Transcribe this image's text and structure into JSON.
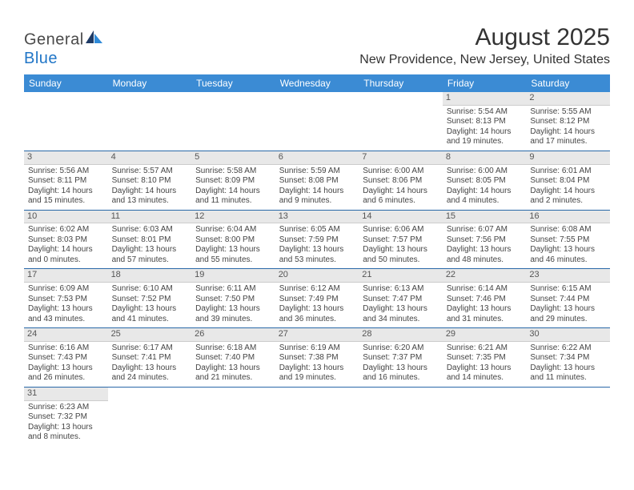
{
  "logo": {
    "text1": "General",
    "text2": "Blue"
  },
  "title": "August 2025",
  "location": "New Providence, New Jersey, United States",
  "colors": {
    "header_bg": "#3b8bd4",
    "header_text": "#ffffff",
    "daynum_bg": "#e8e8e8",
    "row_border": "#2968a8",
    "logo_blue": "#2176c7"
  },
  "weekdays": [
    "Sunday",
    "Monday",
    "Tuesday",
    "Wednesday",
    "Thursday",
    "Friday",
    "Saturday"
  ],
  "weeks": [
    [
      null,
      null,
      null,
      null,
      null,
      {
        "d": "1",
        "sr": "Sunrise: 5:54 AM",
        "ss": "Sunset: 8:13 PM",
        "dl1": "Daylight: 14 hours",
        "dl2": "and 19 minutes."
      },
      {
        "d": "2",
        "sr": "Sunrise: 5:55 AM",
        "ss": "Sunset: 8:12 PM",
        "dl1": "Daylight: 14 hours",
        "dl2": "and 17 minutes."
      }
    ],
    [
      {
        "d": "3",
        "sr": "Sunrise: 5:56 AM",
        "ss": "Sunset: 8:11 PM",
        "dl1": "Daylight: 14 hours",
        "dl2": "and 15 minutes."
      },
      {
        "d": "4",
        "sr": "Sunrise: 5:57 AM",
        "ss": "Sunset: 8:10 PM",
        "dl1": "Daylight: 14 hours",
        "dl2": "and 13 minutes."
      },
      {
        "d": "5",
        "sr": "Sunrise: 5:58 AM",
        "ss": "Sunset: 8:09 PM",
        "dl1": "Daylight: 14 hours",
        "dl2": "and 11 minutes."
      },
      {
        "d": "6",
        "sr": "Sunrise: 5:59 AM",
        "ss": "Sunset: 8:08 PM",
        "dl1": "Daylight: 14 hours",
        "dl2": "and 9 minutes."
      },
      {
        "d": "7",
        "sr": "Sunrise: 6:00 AM",
        "ss": "Sunset: 8:06 PM",
        "dl1": "Daylight: 14 hours",
        "dl2": "and 6 minutes."
      },
      {
        "d": "8",
        "sr": "Sunrise: 6:00 AM",
        "ss": "Sunset: 8:05 PM",
        "dl1": "Daylight: 14 hours",
        "dl2": "and 4 minutes."
      },
      {
        "d": "9",
        "sr": "Sunrise: 6:01 AM",
        "ss": "Sunset: 8:04 PM",
        "dl1": "Daylight: 14 hours",
        "dl2": "and 2 minutes."
      }
    ],
    [
      {
        "d": "10",
        "sr": "Sunrise: 6:02 AM",
        "ss": "Sunset: 8:03 PM",
        "dl1": "Daylight: 14 hours",
        "dl2": "and 0 minutes."
      },
      {
        "d": "11",
        "sr": "Sunrise: 6:03 AM",
        "ss": "Sunset: 8:01 PM",
        "dl1": "Daylight: 13 hours",
        "dl2": "and 57 minutes."
      },
      {
        "d": "12",
        "sr": "Sunrise: 6:04 AM",
        "ss": "Sunset: 8:00 PM",
        "dl1": "Daylight: 13 hours",
        "dl2": "and 55 minutes."
      },
      {
        "d": "13",
        "sr": "Sunrise: 6:05 AM",
        "ss": "Sunset: 7:59 PM",
        "dl1": "Daylight: 13 hours",
        "dl2": "and 53 minutes."
      },
      {
        "d": "14",
        "sr": "Sunrise: 6:06 AM",
        "ss": "Sunset: 7:57 PM",
        "dl1": "Daylight: 13 hours",
        "dl2": "and 50 minutes."
      },
      {
        "d": "15",
        "sr": "Sunrise: 6:07 AM",
        "ss": "Sunset: 7:56 PM",
        "dl1": "Daylight: 13 hours",
        "dl2": "and 48 minutes."
      },
      {
        "d": "16",
        "sr": "Sunrise: 6:08 AM",
        "ss": "Sunset: 7:55 PM",
        "dl1": "Daylight: 13 hours",
        "dl2": "and 46 minutes."
      }
    ],
    [
      {
        "d": "17",
        "sr": "Sunrise: 6:09 AM",
        "ss": "Sunset: 7:53 PM",
        "dl1": "Daylight: 13 hours",
        "dl2": "and 43 minutes."
      },
      {
        "d": "18",
        "sr": "Sunrise: 6:10 AM",
        "ss": "Sunset: 7:52 PM",
        "dl1": "Daylight: 13 hours",
        "dl2": "and 41 minutes."
      },
      {
        "d": "19",
        "sr": "Sunrise: 6:11 AM",
        "ss": "Sunset: 7:50 PM",
        "dl1": "Daylight: 13 hours",
        "dl2": "and 39 minutes."
      },
      {
        "d": "20",
        "sr": "Sunrise: 6:12 AM",
        "ss": "Sunset: 7:49 PM",
        "dl1": "Daylight: 13 hours",
        "dl2": "and 36 minutes."
      },
      {
        "d": "21",
        "sr": "Sunrise: 6:13 AM",
        "ss": "Sunset: 7:47 PM",
        "dl1": "Daylight: 13 hours",
        "dl2": "and 34 minutes."
      },
      {
        "d": "22",
        "sr": "Sunrise: 6:14 AM",
        "ss": "Sunset: 7:46 PM",
        "dl1": "Daylight: 13 hours",
        "dl2": "and 31 minutes."
      },
      {
        "d": "23",
        "sr": "Sunrise: 6:15 AM",
        "ss": "Sunset: 7:44 PM",
        "dl1": "Daylight: 13 hours",
        "dl2": "and 29 minutes."
      }
    ],
    [
      {
        "d": "24",
        "sr": "Sunrise: 6:16 AM",
        "ss": "Sunset: 7:43 PM",
        "dl1": "Daylight: 13 hours",
        "dl2": "and 26 minutes."
      },
      {
        "d": "25",
        "sr": "Sunrise: 6:17 AM",
        "ss": "Sunset: 7:41 PM",
        "dl1": "Daylight: 13 hours",
        "dl2": "and 24 minutes."
      },
      {
        "d": "26",
        "sr": "Sunrise: 6:18 AM",
        "ss": "Sunset: 7:40 PM",
        "dl1": "Daylight: 13 hours",
        "dl2": "and 21 minutes."
      },
      {
        "d": "27",
        "sr": "Sunrise: 6:19 AM",
        "ss": "Sunset: 7:38 PM",
        "dl1": "Daylight: 13 hours",
        "dl2": "and 19 minutes."
      },
      {
        "d": "28",
        "sr": "Sunrise: 6:20 AM",
        "ss": "Sunset: 7:37 PM",
        "dl1": "Daylight: 13 hours",
        "dl2": "and 16 minutes."
      },
      {
        "d": "29",
        "sr": "Sunrise: 6:21 AM",
        "ss": "Sunset: 7:35 PM",
        "dl1": "Daylight: 13 hours",
        "dl2": "and 14 minutes."
      },
      {
        "d": "30",
        "sr": "Sunrise: 6:22 AM",
        "ss": "Sunset: 7:34 PM",
        "dl1": "Daylight: 13 hours",
        "dl2": "and 11 minutes."
      }
    ],
    [
      {
        "d": "31",
        "sr": "Sunrise: 6:23 AM",
        "ss": "Sunset: 7:32 PM",
        "dl1": "Daylight: 13 hours",
        "dl2": "and 8 minutes."
      },
      null,
      null,
      null,
      null,
      null,
      null
    ]
  ]
}
